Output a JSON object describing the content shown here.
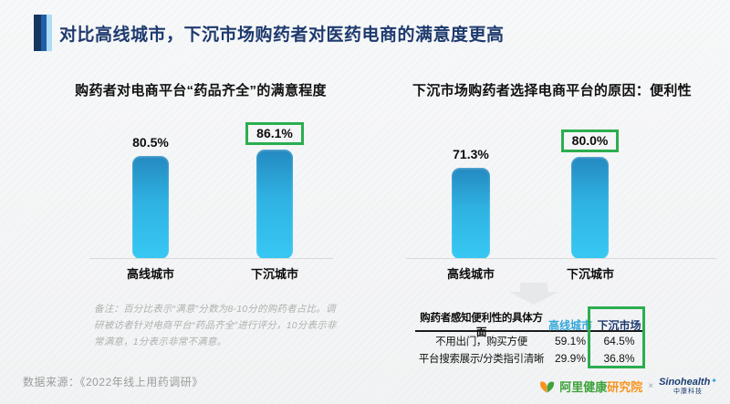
{
  "slide": {
    "title": "对比高线城市，下沉市场购药者对医药电商的满意度更高",
    "source": "数据来源：《2022年线上用药调研》"
  },
  "chart_data": [
    {
      "type": "bar",
      "title": "购药者对电商平台“药品齐全”的满意程度",
      "categories": [
        "高线城市",
        "下沉城市"
      ],
      "values": [
        80.5,
        86.1
      ],
      "labels": [
        "80.5%",
        "86.1%"
      ],
      "highlight_index": 1,
      "ylim": [
        0,
        100
      ],
      "grid": false,
      "legend": "none"
    },
    {
      "type": "bar",
      "title": "下沉市场购药者选择电商平台的原因：便利性",
      "categories": [
        "高线城市",
        "下沉城市"
      ],
      "values": [
        71.3,
        80.0
      ],
      "labels": [
        "71.3%",
        "80.0%"
      ],
      "highlight_index": 1,
      "ylim": [
        0,
        100
      ],
      "grid": false,
      "legend": "none"
    },
    {
      "type": "table",
      "headers": [
        "购药者感知便利性的具体方面",
        "高线城市",
        "下沉市场"
      ],
      "rows": [
        [
          "不用出门，购买方便",
          "59.1%",
          "64.5%"
        ],
        [
          "平台搜索展示/分类指引清晰",
          "29.9%",
          "36.8%"
        ]
      ],
      "highlight_column": "下沉市场"
    }
  ],
  "note": "备注：百分比表示“满意”分数为8-10分的购药者占比。调研被访者针对电商平台“药品齐全”进行评分，10分表示非常满意，1分表示非常不满意。",
  "footer": {
    "ali_brand_green": "阿里健康",
    "ali_brand_orange": "研究院",
    "separator": "×",
    "sino_brand": "Sinohealth",
    "sino_star": "✦",
    "sino_sub": "中康科技"
  },
  "colors": {
    "title_navy": "#1E3A6E",
    "highlight_green": "#2BAE4F",
    "bar_gradient_top": "#2489C0",
    "bar_gradient_bottom": "#37C8F3",
    "table_header_cyan": "#35A8DC",
    "table_header_navy": "#1E3A6E"
  }
}
